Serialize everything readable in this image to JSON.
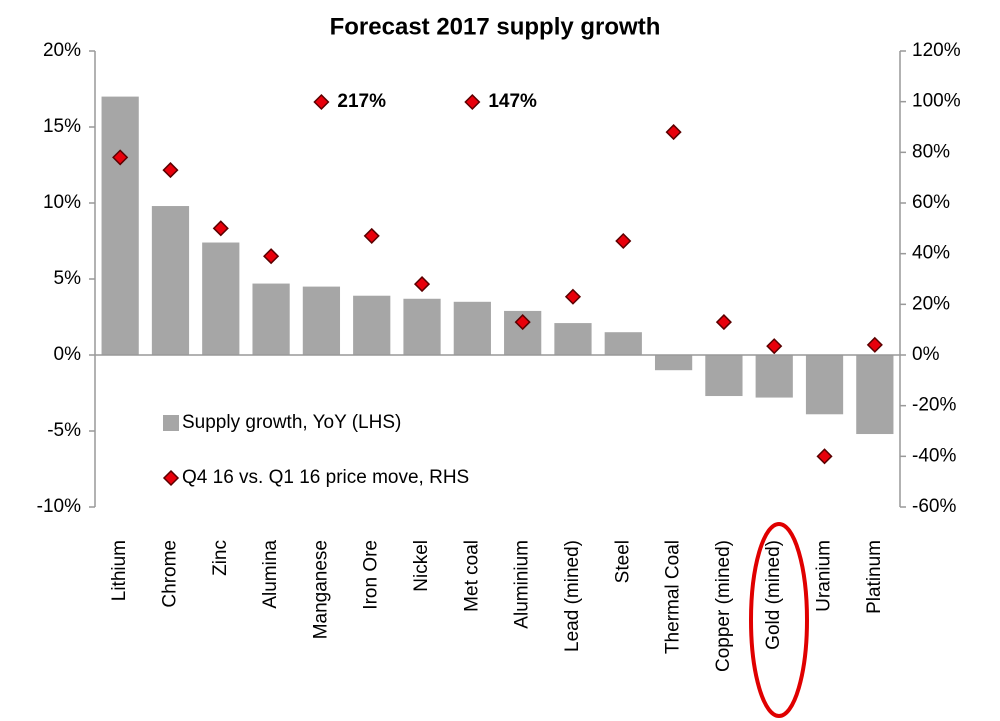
{
  "chart_data": {
    "type": "bar",
    "title": "Forecast 2017 supply growth",
    "categories": [
      "Lithium",
      "Chrome",
      "Zinc",
      "Alumina",
      "Manganese",
      "Iron Ore",
      "Nickel",
      "Met coal",
      "Aluminium",
      "Lead (mined)",
      "Steel",
      "Thermal Coal",
      "Copper (mined)",
      "Gold (mined)",
      "Uranium",
      "Platinum"
    ],
    "series": [
      {
        "name": "Supply growth, YoY (LHS)",
        "type": "bar",
        "color": "#a6a6a6",
        "values": [
          17.0,
          9.8,
          7.4,
          4.7,
          4.5,
          3.9,
          3.7,
          3.5,
          2.9,
          2.1,
          1.5,
          -1.0,
          -2.7,
          -2.8,
          -3.9,
          -5.2
        ]
      },
      {
        "name": "Q4 16 vs. Q1 16 price move, RHS",
        "type": "scatter",
        "axis": "y2",
        "color": "#e8000b",
        "values": [
          78,
          73,
          50,
          39,
          null,
          47,
          28,
          null,
          13,
          23,
          45,
          88,
          13,
          3.5,
          -40,
          4
        ]
      }
    ],
    "annotations": [
      {
        "text": "217%",
        "x": "Manganese"
      },
      {
        "text": "147%",
        "x": "Met coal"
      }
    ],
    "ylim": [
      -10,
      20
    ],
    "yticks": [
      {
        "value": -10,
        "label": "-10%"
      },
      {
        "value": -5,
        "label": "-5%"
      },
      {
        "value": 0,
        "label": "0%"
      },
      {
        "value": 5,
        "label": "5%"
      },
      {
        "value": 10,
        "label": "10%"
      },
      {
        "value": 15,
        "label": "15%"
      },
      {
        "value": 20,
        "label": "20%"
      }
    ],
    "y2lim": [
      -60,
      120
    ],
    "y2ticks": [
      {
        "value": -60,
        "label": "-60%"
      },
      {
        "value": -40,
        "label": "-40%"
      },
      {
        "value": -20,
        "label": "-20%"
      },
      {
        "value": 0,
        "label": "0%"
      },
      {
        "value": 20,
        "label": "20%"
      },
      {
        "value": 40,
        "label": "40%"
      },
      {
        "value": 60,
        "label": "60%"
      },
      {
        "value": 80,
        "label": "80%"
      },
      {
        "value": 100,
        "label": "100%"
      },
      {
        "value": 120,
        "label": "120%"
      }
    ]
  }
}
